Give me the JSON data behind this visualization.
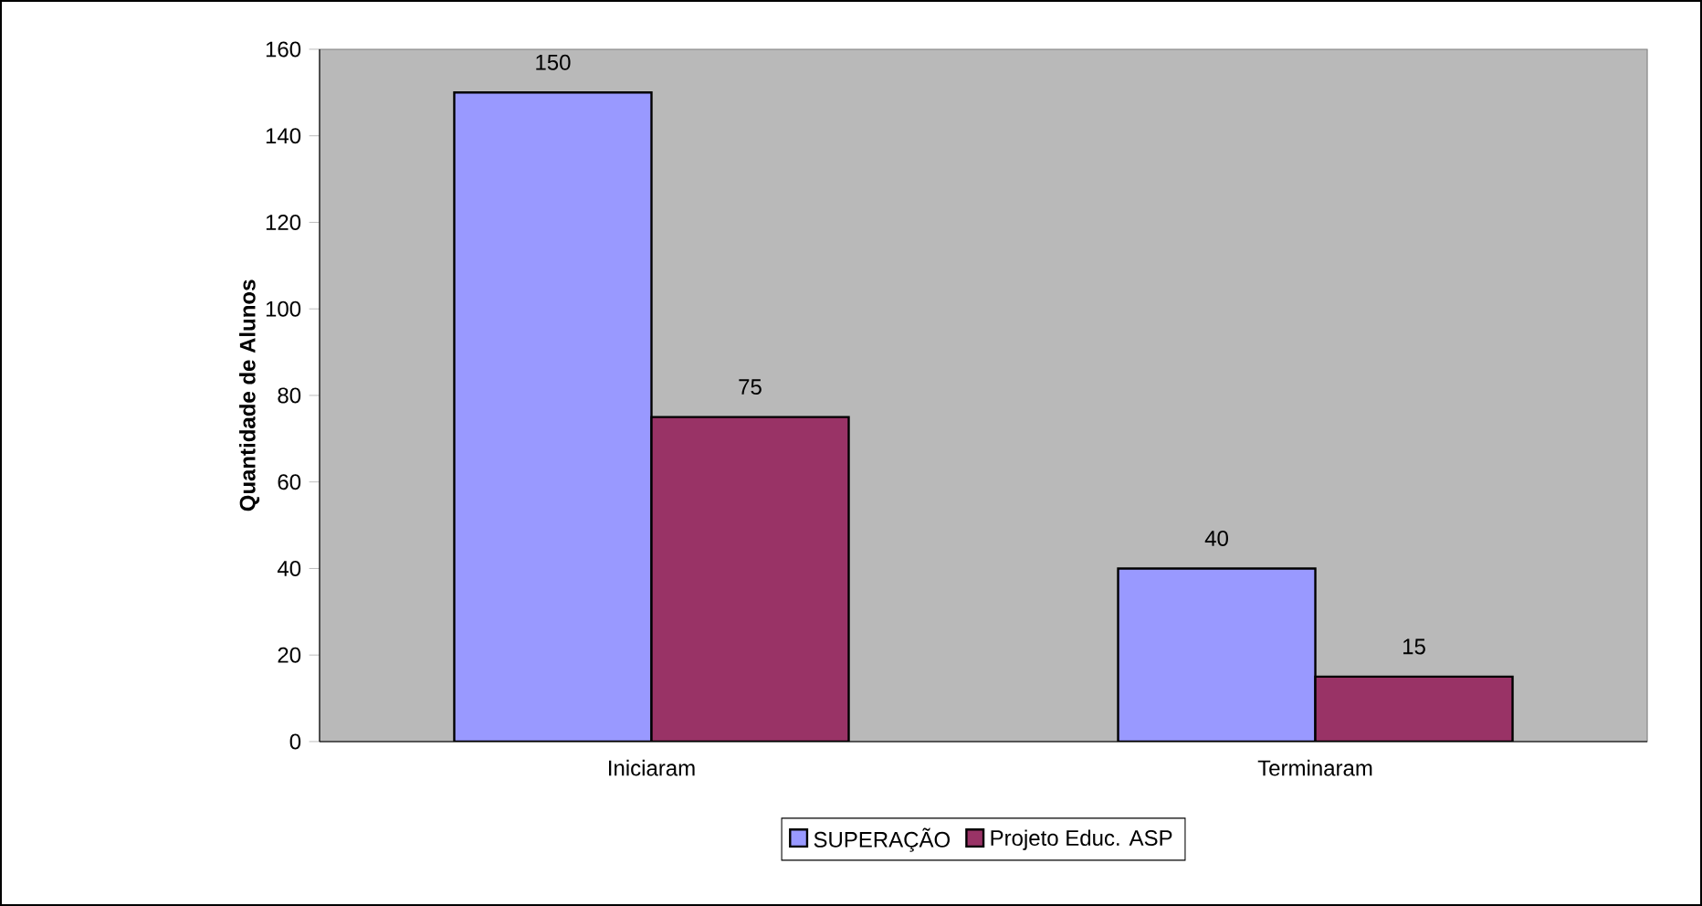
{
  "chart_data": {
    "type": "bar",
    "ylabel": "Quantidade de Alunos",
    "categories": [
      "Iniciaram",
      "Terminaram"
    ],
    "series": [
      {
        "name": "SUPERAÇÃO",
        "color": "#9999ff",
        "values": [
          150,
          40
        ]
      },
      {
        "name": "Projeto Educ. ASP",
        "color": "#993366",
        "values": [
          75,
          15
        ]
      }
    ],
    "ylim": [
      0,
      160
    ],
    "yticks": [
      0,
      20,
      40,
      60,
      80,
      100,
      120,
      140,
      160
    ],
    "data_labels": true,
    "legend": "bottom",
    "grid": false
  }
}
